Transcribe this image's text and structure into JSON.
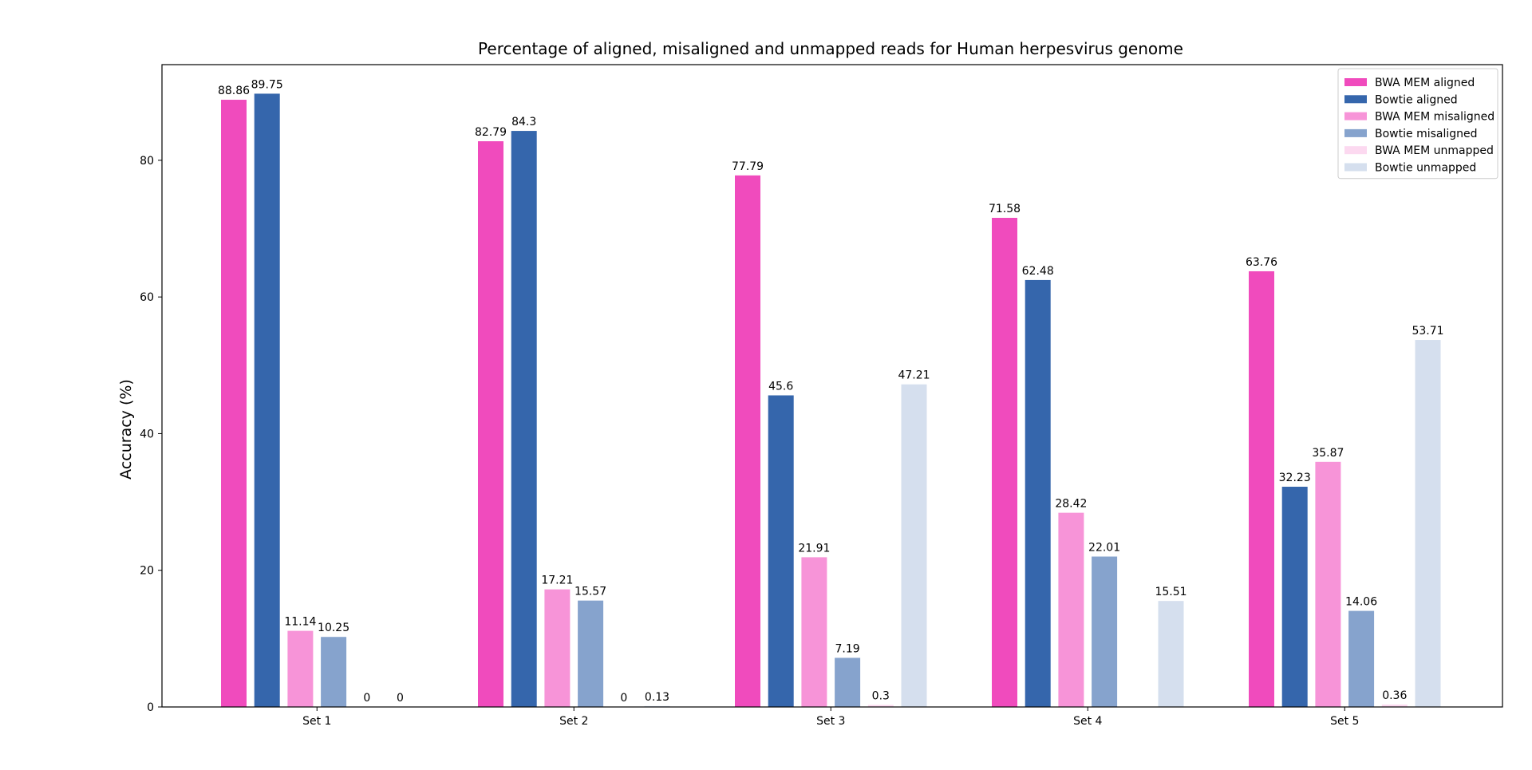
{
  "chart_data": {
    "type": "bar",
    "title": "Percentage of aligned, misaligned and unmapped reads for Human herpesvirus genome",
    "xlabel": "",
    "ylabel": "Accuracy (%)",
    "ylim": [
      0,
      94
    ],
    "yticks": [
      0,
      20,
      40,
      60,
      80
    ],
    "categories": [
      "Set 1",
      "Set 2",
      "Set 3",
      "Set 4",
      "Set 5"
    ],
    "legend_position": "top-right",
    "grid": false,
    "series": [
      {
        "name": "BWA MEM aligned",
        "color": "#f04bbd",
        "values": [
          88.86,
          82.79,
          77.79,
          71.58,
          63.76
        ],
        "labels": [
          "88.86",
          "82.79",
          "77.79",
          "71.58",
          "63.76"
        ]
      },
      {
        "name": "Bowtie aligned",
        "color": "#3566ac",
        "values": [
          89.75,
          84.3,
          45.6,
          62.48,
          32.23
        ],
        "labels": [
          "89.75",
          "84.3",
          "45.6",
          "62.48",
          "32.23"
        ]
      },
      {
        "name": "BWA MEM misaligned",
        "color": "#f794d8",
        "values": [
          11.14,
          17.21,
          21.91,
          28.42,
          35.87
        ],
        "labels": [
          "11.14",
          "17.21",
          "21.91",
          "28.42",
          "35.87"
        ]
      },
      {
        "name": "Bowtie misaligned",
        "color": "#86a3cd",
        "values": [
          10.25,
          15.57,
          7.19,
          22.01,
          14.06
        ],
        "labels": [
          "10.25",
          "15.57",
          "7.19",
          "22.01",
          "14.06"
        ]
      },
      {
        "name": "BWA MEM unmapped",
        "color": "#fcd9f0",
        "values": [
          0,
          0,
          0.3,
          null,
          0.36
        ],
        "labels": [
          "0",
          "0",
          "0.3",
          "",
          "0.36"
        ]
      },
      {
        "name": "Bowtie unmapped",
        "color": "#d5dfee",
        "values": [
          0,
          0.13,
          47.21,
          15.51,
          53.71
        ],
        "labels": [
          "0",
          "0.13",
          "47.21",
          "15.51",
          "53.71"
        ]
      }
    ]
  }
}
